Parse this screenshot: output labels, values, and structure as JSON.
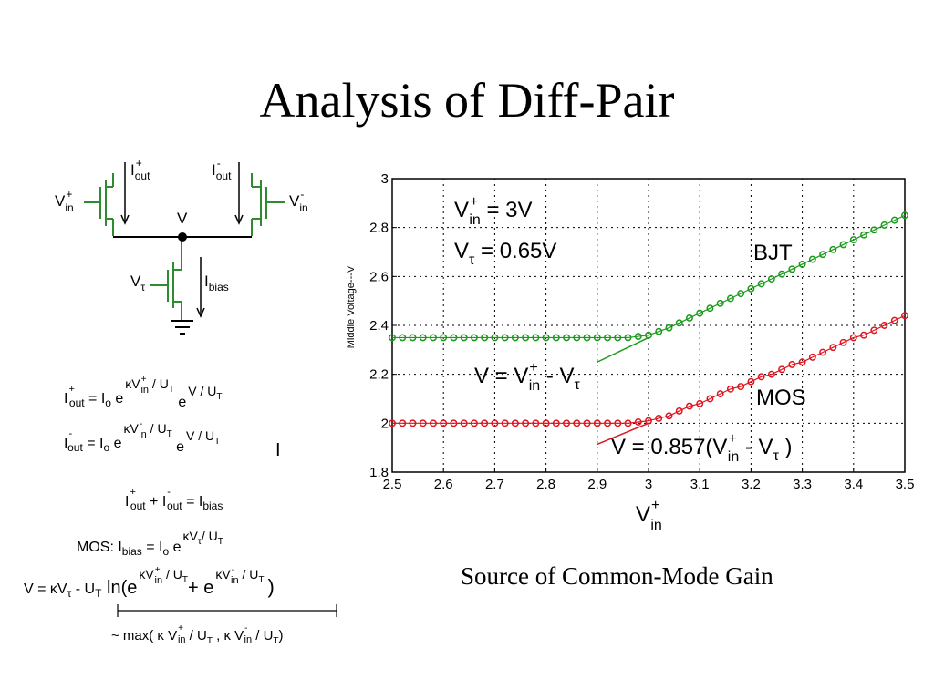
{
  "slide": {
    "title": "Analysis of Diff-Pair",
    "caption": "Source of Common-Mode Gain"
  },
  "circuit": {
    "labels": {
      "vin_plus": "V",
      "vin_plus_sup": "+",
      "vin_plus_sub": "in",
      "vin_minus": "V",
      "vin_minus_sup": "-",
      "vin_minus_sub": "in",
      "iout_plus": "I",
      "iout_plus_sup": "+",
      "iout_plus_sub": "out",
      "iout_minus": "I",
      "iout_minus_sup": "-",
      "iout_minus_sub": "out",
      "node_v": "V",
      "vtau": "V",
      "vtau_sub": "τ",
      "ibias": "I",
      "ibias_sub": "bias"
    },
    "colors": {
      "transistor": "#2e8b2e",
      "wire": "#000000"
    }
  },
  "equations": {
    "eq1": {
      "lhs": "I",
      "lhs_sup": "+",
      "lhs_sub": "out",
      "rest1": " = I",
      "o_sub": "o",
      "e": " e",
      "exp1": "κV",
      "exp1_sup": "+",
      "exp1_sub": "in",
      "exp1_tail": " / U",
      "exp1_tail_sub": "T",
      "e2": " e",
      "exp2": "V / U",
      "exp2_sub": "T"
    },
    "eq2": {
      "lhs": "I",
      "lhs_sup": "-",
      "lhs_sub": "out",
      "rest1": " = I",
      "o_sub": "o",
      "e": " e",
      "exp1": "κV",
      "exp1_sup": "-",
      "exp1_sub": "in",
      "exp1_tail": " / U",
      "exp1_tail_sub": "T",
      "e2": " e",
      "exp2": "V / U",
      "exp2_sub": "T",
      "stray": "I"
    },
    "eq3": {
      "a": "I",
      "a_sup": "+",
      "a_sub": "out",
      "plus": " + I",
      "b_sup": "-",
      "b_sub": "out",
      "eq": " = I",
      "c_sub": "bias"
    },
    "eq4": {
      "prefix": "MOS: I",
      "prefix_sub": "bias",
      "eq": " = I",
      "o_sub": "o",
      "e": " e",
      "exp": "κV",
      "exp_sub": "τ",
      "exp_tail": "/ U",
      "exp_tail_sub": "T"
    },
    "eq5": {
      "lhs": "V = κV",
      "lhs_sub": "τ",
      "mid": " - U",
      "mid_sub": "T",
      "ln": " ln(e",
      "exp1": "κV",
      "exp1_sup": "+",
      "exp1_sub": "in",
      "exp1_tail": " / U",
      "exp1_tail_sub": "T",
      "plus": "+ e",
      "exp2": "κV",
      "exp2_sup": "-",
      "exp2_sub": "in",
      "exp2_tail": " / U",
      "exp2_tail_sub": "T",
      "close": ")"
    },
    "eq6": {
      "text": "~ max( κ V",
      "a_sup": "+",
      "a_sub": "in",
      "a_tail": " / U",
      "a_tail_sub": "T",
      "sep": " , κ V",
      "b_sup": "-",
      "b_sub": "in",
      "b_tail": " / U",
      "b_tail_sub": "T",
      "close": ")"
    }
  },
  "chart_data": {
    "type": "scatter",
    "xlabel": "V",
    "xlabel_sup": "+",
    "xlabel_sub": "in",
    "ylabel": "Middle Voltage---V",
    "xlim": [
      2.5,
      3.5
    ],
    "ylim": [
      1.8,
      3.0
    ],
    "xticks": [
      "2.5",
      "2.6",
      "2.7",
      "2.8",
      "2.9",
      "3",
      "3.1",
      "3.2",
      "3.3",
      "3.4",
      "3.5"
    ],
    "yticks": [
      "1.8",
      "2",
      "2.2",
      "2.4",
      "2.6",
      "2.8",
      "3"
    ],
    "grid": true,
    "series": [
      {
        "name": "BJT",
        "color": "#1a9a1a",
        "marker": "circle",
        "x": [
          2.5,
          2.52,
          2.54,
          2.56,
          2.58,
          2.6,
          2.62,
          2.64,
          2.66,
          2.68,
          2.7,
          2.72,
          2.74,
          2.76,
          2.78,
          2.8,
          2.82,
          2.84,
          2.86,
          2.88,
          2.9,
          2.92,
          2.94,
          2.96,
          2.98,
          3.0,
          3.02,
          3.04,
          3.06,
          3.08,
          3.1,
          3.12,
          3.14,
          3.16,
          3.18,
          3.2,
          3.22,
          3.24,
          3.26,
          3.28,
          3.3,
          3.32,
          3.34,
          3.36,
          3.38,
          3.4,
          3.42,
          3.44,
          3.46,
          3.48,
          3.5
        ],
        "y": [
          2.35,
          2.35,
          2.35,
          2.35,
          2.35,
          2.35,
          2.35,
          2.35,
          2.35,
          2.35,
          2.35,
          2.35,
          2.35,
          2.35,
          2.35,
          2.35,
          2.35,
          2.35,
          2.35,
          2.35,
          2.35,
          2.35,
          2.35,
          2.35,
          2.355,
          2.36,
          2.375,
          2.39,
          2.41,
          2.43,
          2.45,
          2.47,
          2.49,
          2.51,
          2.53,
          2.55,
          2.57,
          2.59,
          2.61,
          2.63,
          2.65,
          2.67,
          2.69,
          2.71,
          2.73,
          2.75,
          2.77,
          2.79,
          2.81,
          2.83,
          2.85
        ]
      },
      {
        "name": "MOS",
        "color": "#e0141e",
        "marker": "circle",
        "x": [
          2.5,
          2.52,
          2.54,
          2.56,
          2.58,
          2.6,
          2.62,
          2.64,
          2.66,
          2.68,
          2.7,
          2.72,
          2.74,
          2.76,
          2.78,
          2.8,
          2.82,
          2.84,
          2.86,
          2.88,
          2.9,
          2.92,
          2.94,
          2.96,
          2.98,
          3.0,
          3.02,
          3.04,
          3.06,
          3.08,
          3.1,
          3.12,
          3.14,
          3.16,
          3.18,
          3.2,
          3.22,
          3.24,
          3.26,
          3.28,
          3.3,
          3.32,
          3.34,
          3.36,
          3.38,
          3.4,
          3.42,
          3.44,
          3.46,
          3.48,
          3.5
        ],
        "y": [
          2.0,
          2.0,
          2.0,
          2.0,
          2.0,
          2.0,
          2.0,
          2.0,
          2.0,
          2.0,
          2.0,
          2.0,
          2.0,
          2.0,
          2.0,
          2.0,
          2.0,
          2.0,
          2.0,
          2.0,
          2.0,
          2.0,
          2.0,
          2.0,
          2.005,
          2.01,
          2.02,
          2.03,
          2.05,
          2.07,
          2.08,
          2.1,
          2.12,
          2.14,
          2.15,
          2.17,
          2.19,
          2.2,
          2.22,
          2.24,
          2.25,
          2.27,
          2.29,
          2.31,
          2.33,
          2.35,
          2.36,
          2.38,
          2.4,
          2.42,
          2.44
        ]
      }
    ],
    "fit_lines": [
      {
        "color": "#1a9a1a",
        "x": [
          2.9,
          3.0
        ],
        "y": [
          2.25,
          2.35
        ]
      },
      {
        "color": "#e0141e",
        "x": [
          2.9,
          3.0
        ],
        "y": [
          1.914,
          2.0
        ]
      }
    ],
    "annotations": {
      "vin": {
        "a": "V",
        "a_sup": "+",
        "a_sub": "in",
        "b": " = 3V"
      },
      "vtau": {
        "a": "V",
        "a_sub": "τ",
        "b": " = 0.65V"
      },
      "bjt": "BJT",
      "mos": "MOS",
      "bjt_eq": {
        "a": "V = V",
        "a_sup": "+",
        "a_sub": "in",
        "b": " - V",
        "b_sub": "τ"
      },
      "mos_eq": {
        "a": "V = 0.857(V",
        "a_sup": "+",
        "a_sub": "in",
        "b": " - V",
        "b_sub": "τ",
        "c": " )"
      }
    }
  }
}
